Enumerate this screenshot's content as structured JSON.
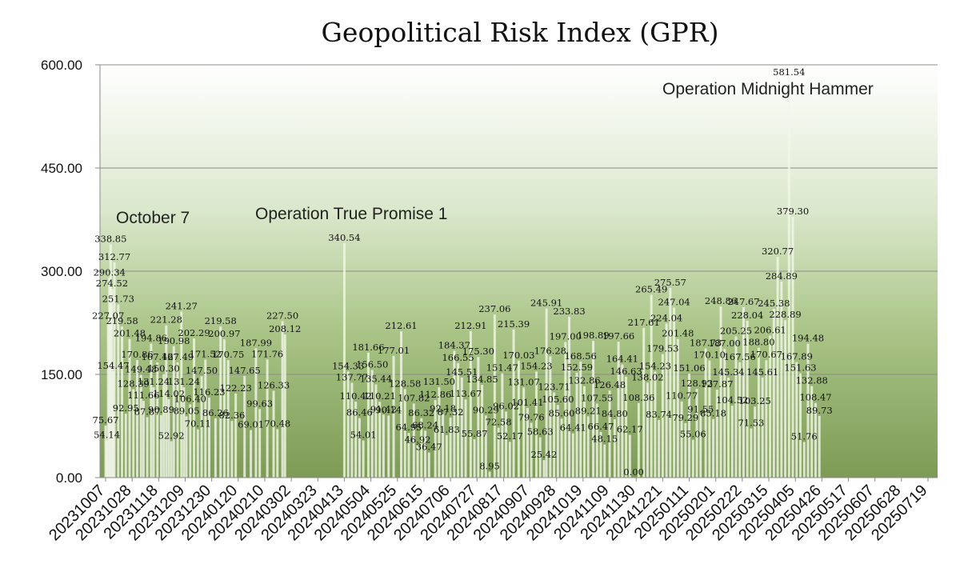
{
  "chart_data": {
    "type": "bar",
    "title": "Geopolitical Risk Index (GPR)",
    "xlabel": "",
    "ylabel": "",
    "ylim": [
      0,
      600
    ],
    "yticks": [
      "0.00",
      "150.00",
      "300.00",
      "450.00",
      "600.00"
    ],
    "grid": true,
    "x_tick_labels": [
      "20231007",
      "20231028",
      "20231118",
      "20231209",
      "20231230",
      "20240120",
      "20240210",
      "20240302",
      "20240323",
      "20240413",
      "20240504",
      "20240525",
      "20240615",
      "20240706",
      "20240727",
      "20240817",
      "20240907",
      "20240928",
      "20241019",
      "20241109",
      "20241130",
      "20241221",
      "20250111",
      "20250201",
      "20250222",
      "20250315",
      "20250405",
      "20250426",
      "20250517",
      "20250607",
      "20250628",
      "20250719"
    ],
    "annotations": [
      "October 7",
      "Operation True Promise 1",
      "Operation Midnight Hammer"
    ],
    "labeled_points": [
      {
        "x": "20231007",
        "y": 75.67
      },
      {
        "x": "20231008",
        "y": 54.14
      },
      {
        "x": "20231009",
        "y": 227.07
      },
      {
        "x": "20231010",
        "y": 290.34
      },
      {
        "x": "20231011",
        "y": 338.85
      },
      {
        "x": "20231012",
        "y": 274.52
      },
      {
        "x": "20231013",
        "y": 154.47
      },
      {
        "x": "20231014",
        "y": 312.77
      },
      {
        "x": "20231017",
        "y": 251.73
      },
      {
        "x": "20231020",
        "y": 219.58
      },
      {
        "x": "20231023",
        "y": 92.95
      },
      {
        "x": "20231026",
        "y": 201.48
      },
      {
        "x": "20231029",
        "y": 128.39
      },
      {
        "x": "20231101",
        "y": 170.86
      },
      {
        "x": "20231104",
        "y": 149.48
      },
      {
        "x": "20231106",
        "y": 111.66
      },
      {
        "x": "20231109",
        "y": 87.87
      },
      {
        "x": "20231112",
        "y": 194.86
      },
      {
        "x": "20231114",
        "y": 131.24
      },
      {
        "x": "20231117",
        "y": 167.42
      },
      {
        "x": "20231120",
        "y": 90.89
      },
      {
        "x": "20231122",
        "y": 150.3
      },
      {
        "x": "20231124",
        "y": 221.28
      },
      {
        "x": "20231126",
        "y": 114.02
      },
      {
        "x": "20231128",
        "y": 52.92
      },
      {
        "x": "20231130",
        "y": 190.98
      },
      {
        "x": "20231203",
        "y": 167.49
      },
      {
        "x": "20231206",
        "y": 241.27
      },
      {
        "x": "20231208",
        "y": 131.24
      },
      {
        "x": "20231210",
        "y": 89.05
      },
      {
        "x": "20231213",
        "y": 106.4
      },
      {
        "x": "20231216",
        "y": 202.29
      },
      {
        "x": "20231219",
        "y": 70.11
      },
      {
        "x": "20231222",
        "y": 147.5
      },
      {
        "x": "20231225",
        "y": 171.52
      },
      {
        "x": "20231228",
        "y": 116.23
      },
      {
        "x": "20240102",
        "y": 86.26
      },
      {
        "x": "20240106",
        "y": 219.58
      },
      {
        "x": "20240109",
        "y": 200.97
      },
      {
        "x": "20240112",
        "y": 170.75
      },
      {
        "x": "20240115",
        "y": 82.36
      },
      {
        "x": "20240118",
        "y": 122.23
      },
      {
        "x": "20240125",
        "y": 147.65
      },
      {
        "x": "20240130",
        "y": 69.01
      },
      {
        "x": "20240203",
        "y": 187.99
      },
      {
        "x": "20240206",
        "y": 99.63
      },
      {
        "x": "20240212",
        "y": 171.76
      },
      {
        "x": "20240217",
        "y": 126.33
      },
      {
        "x": "20240220",
        "y": 70.48
      },
      {
        "x": "20240224",
        "y": 227.5
      },
      {
        "x": "20240226",
        "y": 208.12
      },
      {
        "x": "20240413",
        "y": 340.54
      },
      {
        "x": "20240416",
        "y": 154.33
      },
      {
        "x": "20240419",
        "y": 137.77
      },
      {
        "x": "20240422",
        "y": 110.42
      },
      {
        "x": "20240425",
        "y": 86.46
      },
      {
        "x": "20240428",
        "y": 54.01
      },
      {
        "x": "20240502",
        "y": 181.66
      },
      {
        "x": "20240505",
        "y": 156.5
      },
      {
        "x": "20240508",
        "y": 135.44
      },
      {
        "x": "20240511",
        "y": 110.21
      },
      {
        "x": "20240514",
        "y": 91.42
      },
      {
        "x": "20240518",
        "y": 90.14
      },
      {
        "x": "20240522",
        "y": 177.01
      },
      {
        "x": "20240528",
        "y": 212.61
      },
      {
        "x": "20240531",
        "y": 128.58
      },
      {
        "x": "20240603",
        "y": 64.95
      },
      {
        "x": "20240607",
        "y": 107.82
      },
      {
        "x": "20240610",
        "y": 46.92
      },
      {
        "x": "20240613",
        "y": 86.32
      },
      {
        "x": "20240616",
        "y": 68.24
      },
      {
        "x": "20240619",
        "y": 36.47
      },
      {
        "x": "20240624",
        "y": 112.86
      },
      {
        "x": "20240627",
        "y": 131.5
      },
      {
        "x": "20240630",
        "y": 92.18
      },
      {
        "x": "20240703",
        "y": 61.83
      },
      {
        "x": "20240706",
        "y": 87.32
      },
      {
        "x": "20240709",
        "y": 184.37
      },
      {
        "x": "20240712",
        "y": 166.55
      },
      {
        "x": "20240715",
        "y": 145.51
      },
      {
        "x": "20240718",
        "y": 113.67
      },
      {
        "x": "20240722",
        "y": 212.91
      },
      {
        "x": "20240725",
        "y": 55.87
      },
      {
        "x": "20240728",
        "y": 175.3
      },
      {
        "x": "20240731",
        "y": 134.85
      },
      {
        "x": "20240803",
        "y": 90.29
      },
      {
        "x": "20240806",
        "y": 8.95
      },
      {
        "x": "20240810",
        "y": 237.06
      },
      {
        "x": "20240813",
        "y": 72.58
      },
      {
        "x": "20240816",
        "y": 151.47
      },
      {
        "x": "20240819",
        "y": 96.02
      },
      {
        "x": "20240822",
        "y": 52.17
      },
      {
        "x": "20240825",
        "y": 215.39
      },
      {
        "x": "20240829",
        "y": 170.03
      },
      {
        "x": "20240902",
        "y": 131.07
      },
      {
        "x": "20240905",
        "y": 101.41
      },
      {
        "x": "20240908",
        "y": 79.76
      },
      {
        "x": "20240912",
        "y": 154.23
      },
      {
        "x": "20240915",
        "y": 58.63
      },
      {
        "x": "20240918",
        "y": 25.42
      },
      {
        "x": "20240920",
        "y": 245.91
      },
      {
        "x": "20240923",
        "y": 176.28
      },
      {
        "x": "20240926",
        "y": 123.71
      },
      {
        "x": "20240929",
        "y": 105.6
      },
      {
        "x": "20241002",
        "y": 85.6
      },
      {
        "x": "20241005",
        "y": 197.0
      },
      {
        "x": "20241008",
        "y": 233.83
      },
      {
        "x": "20241011",
        "y": 64.41
      },
      {
        "x": "20241014",
        "y": 152.59
      },
      {
        "x": "20241017",
        "y": 168.56
      },
      {
        "x": "20241020",
        "y": 132.86
      },
      {
        "x": "20241023",
        "y": 89.21
      },
      {
        "x": "20241027",
        "y": 198.89
      },
      {
        "x": "20241030",
        "y": 107.55
      },
      {
        "x": "20241102",
        "y": 66.47
      },
      {
        "x": "20241105",
        "y": 48.15
      },
      {
        "x": "20241109",
        "y": 126.48
      },
      {
        "x": "20241113",
        "y": 84.8
      },
      {
        "x": "20241116",
        "y": 197.66
      },
      {
        "x": "20241119",
        "y": 164.41
      },
      {
        "x": "20241122",
        "y": 146.63
      },
      {
        "x": "20241125",
        "y": 62.17
      },
      {
        "x": "20241128",
        "y": 0.0
      },
      {
        "x": "20241202",
        "y": 108.36
      },
      {
        "x": "20241206",
        "y": 217.61
      },
      {
        "x": "20241209",
        "y": 138.02
      },
      {
        "x": "20241212",
        "y": 265.49
      },
      {
        "x": "20241215",
        "y": 154.23
      },
      {
        "x": "20241218",
        "y": 83.74
      },
      {
        "x": "20241221",
        "y": 179.53
      },
      {
        "x": "20241224",
        "y": 224.04
      },
      {
        "x": "20241227",
        "y": 275.57
      },
      {
        "x": "20241230",
        "y": 247.04
      },
      {
        "x": "20250102",
        "y": 201.48
      },
      {
        "x": "20250105",
        "y": 110.77
      },
      {
        "x": "20250108",
        "y": 79.29
      },
      {
        "x": "20250111",
        "y": 151.06
      },
      {
        "x": "20250114",
        "y": 55.06
      },
      {
        "x": "20250117",
        "y": 128.93
      },
      {
        "x": "20250120",
        "y": 91.55
      },
      {
        "x": "20250124",
        "y": 187.73
      },
      {
        "x": "20250127",
        "y": 170.1
      },
      {
        "x": "20250130",
        "y": 85.18
      },
      {
        "x": "20250202",
        "y": 127.87
      },
      {
        "x": "20250205",
        "y": 248.86
      },
      {
        "x": "20250208",
        "y": 187.0
      },
      {
        "x": "20250211",
        "y": 145.34
      },
      {
        "x": "20250214",
        "y": 104.52
      },
      {
        "x": "20250217",
        "y": 205.25
      },
      {
        "x": "20250220",
        "y": 167.56
      },
      {
        "x": "20250223",
        "y": 247.67
      },
      {
        "x": "20250226",
        "y": 228.04
      },
      {
        "x": "20250301",
        "y": 71.53
      },
      {
        "x": "20250304",
        "y": 103.25
      },
      {
        "x": "20250307",
        "y": 188.8
      },
      {
        "x": "20250310",
        "y": 145.61
      },
      {
        "x": "20250313",
        "y": 170.67
      },
      {
        "x": "20250316",
        "y": 206.61
      },
      {
        "x": "20250319",
        "y": 245.38
      },
      {
        "x": "20250322",
        "y": 320.77
      },
      {
        "x": "20250325",
        "y": 284.89
      },
      {
        "x": "20250328",
        "y": 228.89
      },
      {
        "x": "20250331",
        "y": 581.54
      },
      {
        "x": "20250403",
        "y": 379.3
      },
      {
        "x": "20250406",
        "y": 167.89
      },
      {
        "x": "20250409",
        "y": 151.63
      },
      {
        "x": "20250412",
        "y": 51.76
      },
      {
        "x": "20250415",
        "y": 194.48
      },
      {
        "x": "20250418",
        "y": 132.88
      },
      {
        "x": "20250421",
        "y": 108.47
      },
      {
        "x": "20250424",
        "y": 89.73
      }
    ]
  }
}
